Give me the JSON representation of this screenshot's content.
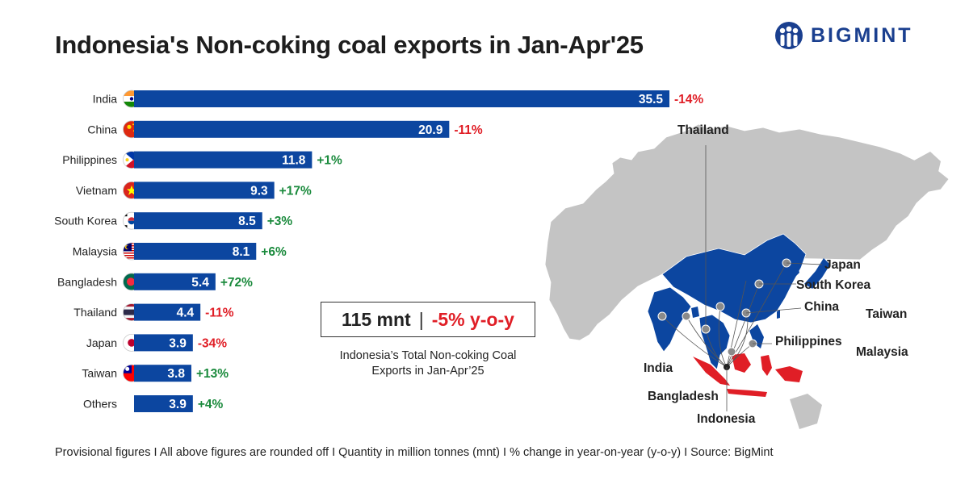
{
  "title": "Indonesia's Non-coking coal exports in Jan-Apr'25",
  "logo": {
    "text": "BIGMINT",
    "icon": "bigmint-people-icon"
  },
  "colors": {
    "bar": "#0c46a0",
    "positive": "#1a8a3c",
    "negative": "#e01e26",
    "map_land": "#c4c4c4",
    "map_highlight": "#0c46a0",
    "indonesia": "#e01e26"
  },
  "chart_data": {
    "type": "bar",
    "orientation": "horizontal",
    "unit": "mnt",
    "categories": [
      "India",
      "China",
      "Philippines",
      "Vietnam",
      "South Korea",
      "Malaysia",
      "Bangladesh",
      "Thailand",
      "Japan",
      "Taiwan",
      "Others"
    ],
    "values": [
      35.5,
      20.9,
      11.8,
      9.3,
      8.5,
      8.1,
      5.4,
      4.4,
      3.9,
      3.8,
      3.9
    ],
    "changes": [
      "-14%",
      "-11%",
      "+1%",
      "+17%",
      "+3%",
      "+6%",
      "+72%",
      "-11%",
      "-34%",
      "+13%",
      "+4%"
    ],
    "flags": [
      "india-flag-icon",
      "china-flag-icon",
      "philippines-flag-icon",
      "vietnam-flag-icon",
      "south-korea-flag-icon",
      "malaysia-flag-icon",
      "bangladesh-flag-icon",
      "thailand-flag-icon",
      "japan-flag-icon",
      "taiwan-flag-icon",
      ""
    ],
    "xlim": [
      0,
      36
    ]
  },
  "summary": {
    "total": "115 mnt",
    "separator": "|",
    "change": "-5% y-o-y",
    "caption_line1": "Indonesia’s Total Non-coking Coal",
    "caption_line2": "Exports in Jan-Apr’25"
  },
  "map": {
    "labels": [
      "Thailand",
      "Japan",
      "South Korea",
      "China",
      "Taiwan",
      "Philippines",
      "Malaysia",
      "India",
      "Bangladesh",
      "Indonesia"
    ]
  },
  "footer": "Provisional figures  I  All above figures are rounded off  I  Quantity in million tonnes (mnt)  I  % change in year-on-year (y-o-y)  I  Source: BigMint"
}
